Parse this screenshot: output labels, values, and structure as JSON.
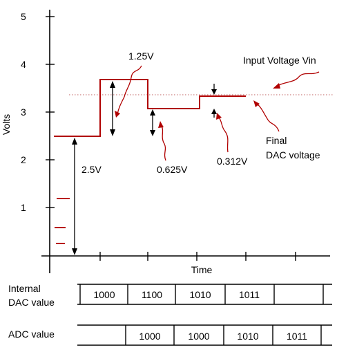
{
  "chart_data": {
    "type": "line",
    "ylabel": "Volts",
    "xlabel": "Time",
    "y_ticks": [
      "1",
      "2",
      "3",
      "4",
      "5"
    ],
    "ylim": [
      0,
      5
    ],
    "dac_steps": [
      2.5,
      3.75,
      3.125,
      3.4375
    ],
    "input_voltage": 3.4,
    "annotations": {
      "input_voltage": "Input Voltage Vin",
      "step1": "2.5V",
      "step2": "1.25V",
      "step3": "0.625V",
      "step4": "0.312V",
      "final_line1": "Final",
      "final_line2": "DAC voltage"
    }
  },
  "tables": {
    "internal_label_line1": "Internal",
    "internal_label_line2": "DAC value",
    "internal_values": [
      "1000",
      "1100",
      "1010",
      "1011",
      ""
    ],
    "adc_label": "ADC value",
    "adc_values": [
      "",
      "1000",
      "1000",
      "1010",
      "1011"
    ]
  },
  "colors": {
    "main": "#000000",
    "red": "#b00000",
    "dotted": "#c06060"
  }
}
